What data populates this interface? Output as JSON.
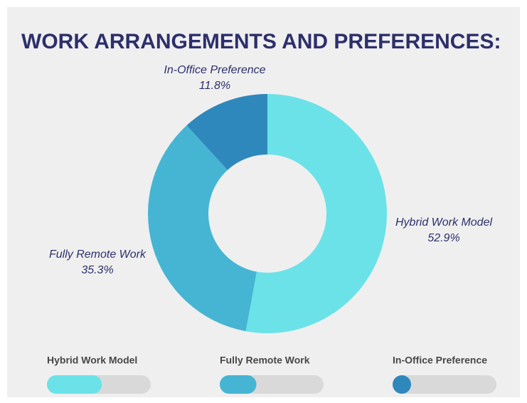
{
  "chart_data": {
    "type": "donut",
    "title": "WORK ARRANGEMENTS AND PREFERENCES:",
    "categories": [
      "Hybrid Work Model",
      "Fully Remote Work",
      "In-Office Preference"
    ],
    "values": [
      52.9,
      35.3,
      11.8
    ],
    "value_labels": [
      "52.9%",
      "35.3%",
      "11.8%"
    ],
    "colors": [
      "#6ae2e8",
      "#45b5d3",
      "#2e88bb"
    ]
  }
}
